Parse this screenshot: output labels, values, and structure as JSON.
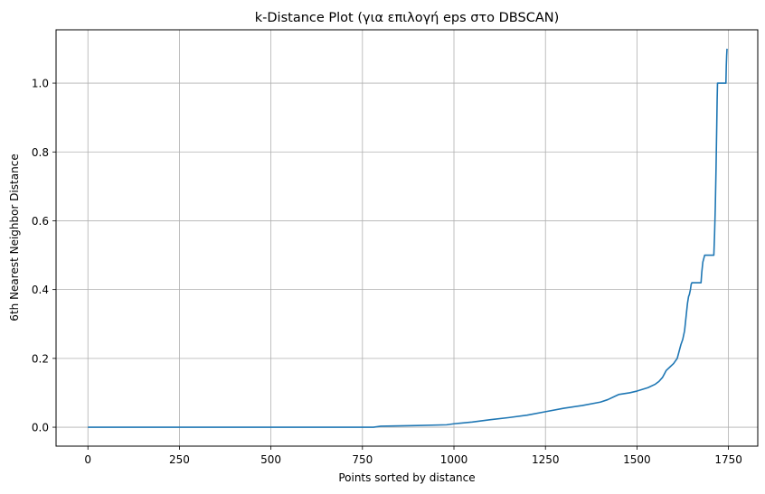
{
  "chart_data": {
    "type": "line",
    "title": "k-Distance Plot (για επιλογή eps στο DBSCAN)",
    "xlabel": "Points sorted by distance",
    "ylabel": "6th Nearest Neighbor Distance",
    "xlim": [
      -87,
      1830
    ],
    "ylim": [
      -0.055,
      1.155
    ],
    "x_ticks": [
      0,
      250,
      500,
      750,
      1000,
      1250,
      1500,
      1750
    ],
    "x_tick_labels": [
      "0",
      "250",
      "500",
      "750",
      "1000",
      "1250",
      "1500",
      "1750"
    ],
    "y_ticks": [
      0.0,
      0.2,
      0.4,
      0.6,
      0.8,
      1.0
    ],
    "y_tick_labels": [
      "0.0",
      "0.2",
      "0.4",
      "0.6",
      "0.8",
      "1.0"
    ],
    "grid": true,
    "colors": {
      "line": "#1f77b4",
      "grid": "#b0b0b0",
      "axes": "#000000"
    },
    "series": [
      {
        "x": [
          0,
          780,
          800,
          900,
          980,
          1000,
          1050,
          1100,
          1150,
          1200,
          1250,
          1300,
          1350,
          1400,
          1420,
          1440,
          1450,
          1480,
          1500,
          1530,
          1550,
          1560,
          1570,
          1575,
          1580,
          1590,
          1600,
          1610,
          1615,
          1620,
          1625,
          1630,
          1632,
          1635,
          1638,
          1641,
          1643,
          1646,
          1648,
          1650,
          1652,
          1660,
          1670,
          1675,
          1677,
          1680,
          1685,
          1700,
          1710,
          1712,
          1714,
          1716,
          1718,
          1719,
          1720,
          1721,
          1722,
          1730,
          1740,
          1743,
          1744,
          1745,
          1746
        ],
        "y": [
          0.0,
          0.0,
          0.003,
          0.005,
          0.007,
          0.01,
          0.015,
          0.022,
          0.028,
          0.035,
          0.045,
          0.055,
          0.063,
          0.073,
          0.08,
          0.09,
          0.095,
          0.1,
          0.105,
          0.115,
          0.125,
          0.133,
          0.145,
          0.155,
          0.165,
          0.175,
          0.185,
          0.2,
          0.22,
          0.24,
          0.255,
          0.28,
          0.3,
          0.33,
          0.36,
          0.38,
          0.385,
          0.4,
          0.415,
          0.42,
          0.42,
          0.42,
          0.42,
          0.42,
          0.45,
          0.48,
          0.5,
          0.5,
          0.5,
          0.56,
          0.64,
          0.75,
          0.88,
          0.95,
          1.0,
          1.0,
          1.0,
          1.0,
          1.0,
          1.0,
          1.05,
          1.08,
          1.1
        ]
      }
    ]
  }
}
